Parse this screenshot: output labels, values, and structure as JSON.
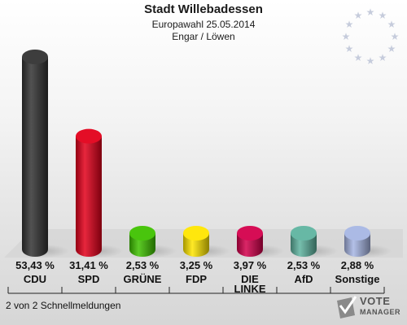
{
  "header": {
    "title": "Stadt Willebadessen",
    "subtitle": "Europawahl 25.05.2014",
    "district": "Engar / Löwen"
  },
  "footer": {
    "status": "2 von 2 Schnellmeldungen"
  },
  "logo": {
    "line1": "VOTE",
    "line2": "MANAGER"
  },
  "chart_data": {
    "type": "bar",
    "categories": [
      "CDU",
      "SPD",
      "GRÜNE",
      "FDP",
      "DIE LINKE",
      "AfD",
      "Sonstige"
    ],
    "values": [
      53.43,
      31.41,
      2.53,
      3.25,
      3.97,
      2.53,
      2.88
    ],
    "value_labels": [
      "53,43 %",
      "31,41 %",
      "2,53 %",
      "3,25 %",
      "3,97 %",
      "2,53 %",
      "2,88 %"
    ],
    "colors": [
      "#333333",
      "#e3001b",
      "#3fc200",
      "#ffe600",
      "#d4004c",
      "#5fb4a0",
      "#a7b6e4"
    ],
    "ylim": [
      0,
      53.43
    ],
    "grid": false
  }
}
